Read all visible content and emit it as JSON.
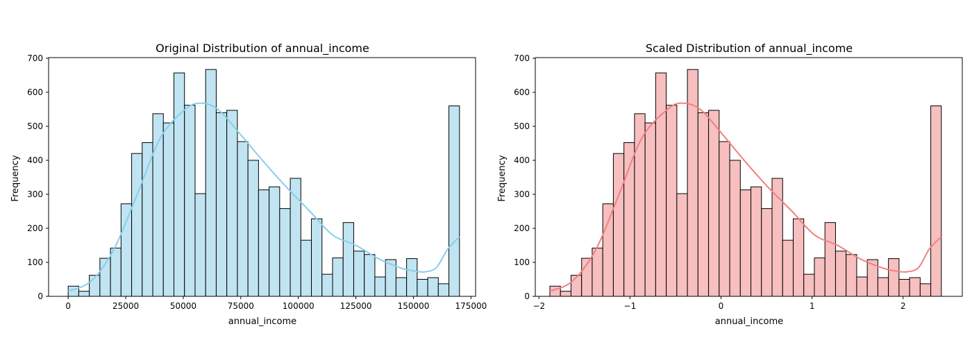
{
  "colors": {
    "left_fill": "#c1e4f2",
    "left_kde": "#87ceeb",
    "right_fill": "#f7bfbf",
    "right_kde": "#f08080",
    "edge": "#000000"
  },
  "chart_data": [
    {
      "type": "histogram",
      "title": "Original Distribution of annual_income",
      "xlabel": "annual_income",
      "ylabel": "Frequency",
      "xlim": [
        -8500,
        177000
      ],
      "ylim": [
        0,
        702
      ],
      "xticks": [
        0,
        25000,
        50000,
        75000,
        100000,
        125000,
        150000,
        175000
      ],
      "xtick_labels": [
        "0",
        "25000",
        "50000",
        "75000",
        "100000",
        "125000",
        "150000",
        "175000"
      ],
      "yticks": [
        0,
        100,
        200,
        300,
        400,
        500,
        600,
        700
      ],
      "ytick_labels": [
        "0",
        "100",
        "200",
        "300",
        "400",
        "500",
        "600",
        "700"
      ],
      "bins": {
        "start": 0,
        "end": 170000,
        "counts": [
          30,
          15,
          62,
          112,
          142,
          272,
          420,
          452,
          537,
          510,
          657,
          562,
          302,
          667,
          540,
          547,
          455,
          400,
          313,
          322,
          258,
          347,
          165,
          228,
          65,
          113,
          217,
          133,
          123,
          57,
          108,
          55,
          111,
          50,
          55,
          37,
          560
        ]
      },
      "kde": {
        "x": [
          0,
          10000,
          20000,
          30000,
          40000,
          50000,
          57000,
          65000,
          75000,
          85000,
          95000,
          105000,
          115000,
          125000,
          135000,
          145000,
          150000,
          155000,
          160000,
          165000,
          170000
        ],
        "y": [
          15,
          45,
          140,
          300,
          465,
          545,
          568,
          550,
          475,
          395,
          320,
          250,
          180,
          150,
          110,
          82,
          75,
          72,
          85,
          140,
          175
        ]
      }
    },
    {
      "type": "histogram",
      "title": "Scaled Distribution of annual_income",
      "xlabel": "annual_income",
      "ylabel": "Frequency",
      "xlim": [
        -2.04,
        2.65
      ],
      "ylim": [
        0,
        702
      ],
      "xticks": [
        -2,
        -1,
        0,
        1,
        2
      ],
      "xtick_labels": [
        "−2",
        "−1",
        "0",
        "1",
        "2"
      ],
      "yticks": [
        0,
        100,
        200,
        300,
        400,
        500,
        600,
        700
      ],
      "ytick_labels": [
        "0",
        "100",
        "200",
        "300",
        "400",
        "500",
        "600",
        "700"
      ],
      "bins": {
        "start": -1.88,
        "end": 2.42,
        "counts": [
          30,
          15,
          62,
          112,
          142,
          272,
          420,
          452,
          537,
          510,
          657,
          562,
          302,
          667,
          540,
          547,
          455,
          400,
          313,
          322,
          258,
          347,
          165,
          228,
          65,
          113,
          217,
          133,
          123,
          57,
          108,
          55,
          111,
          50,
          55,
          37,
          560
        ]
      },
      "kde": {
        "x": [
          -1.88,
          -1.63,
          -1.37,
          -1.12,
          -0.87,
          -0.61,
          -0.44,
          -0.23,
          0.02,
          0.27,
          0.52,
          0.78,
          1.03,
          1.28,
          1.53,
          1.79,
          1.91,
          2.04,
          2.17,
          2.29,
          2.42
        ],
        "y": [
          15,
          45,
          140,
          300,
          465,
          545,
          568,
          550,
          475,
          395,
          320,
          250,
          180,
          150,
          110,
          82,
          75,
          72,
          85,
          140,
          175
        ]
      }
    }
  ]
}
